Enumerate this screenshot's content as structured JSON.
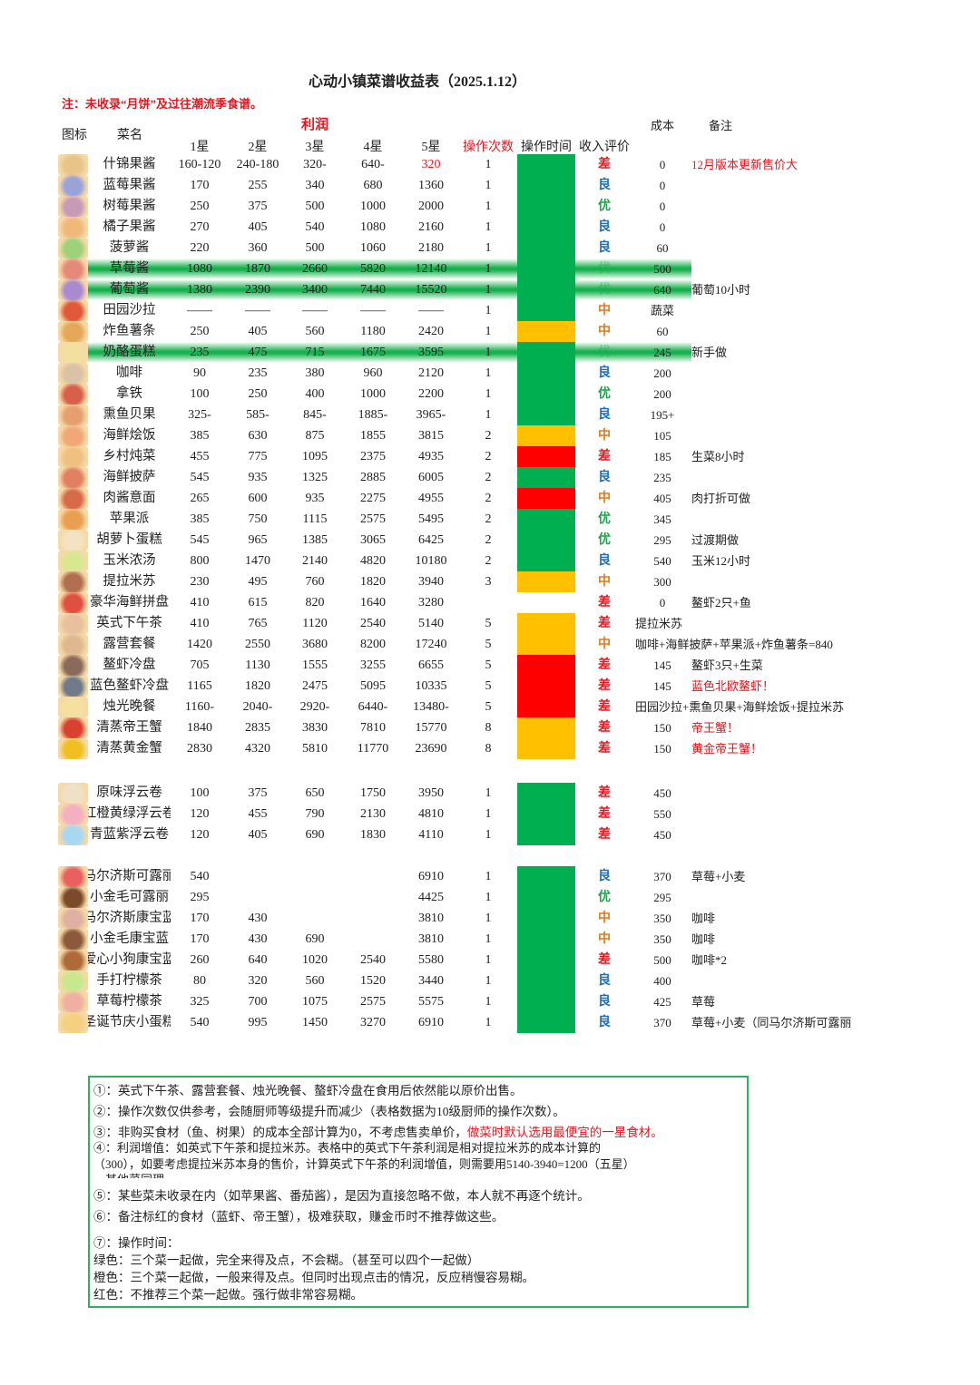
{
  "title": "心动小镇菜谱收益表（2025.1.12）",
  "top_note": "注：未收录“月饼”及过往潮流季食谱。",
  "headers": {
    "icon": "图标",
    "name": "菜名",
    "profit": "利润",
    "stars": [
      "1星",
      "2星",
      "3星",
      "4星",
      "5星"
    ],
    "count": "操作次数",
    "time": "操作时间",
    "rating": "收入评价",
    "cost": "成本",
    "remark": "备注"
  },
  "colors": {
    "green": "#00b050",
    "orange": "#ffc000",
    "red": "#ff0000"
  },
  "sections": [
    {
      "rows": [
        {
          "name": "什锦果酱",
          "p": [
            "160-120",
            "240-180",
            "320-",
            "640-",
            "320"
          ],
          "p5red": true,
          "n": "1",
          "t": "green",
          "r": "差",
          "c": "0",
          "note": "12月版本更新售价大",
          "noteRed": true,
          "icon": "#e9c48a"
        },
        {
          "name": "蓝莓果酱",
          "p": [
            "170",
            "255",
            "340",
            "680",
            "1360"
          ],
          "n": "1",
          "t": "green",
          "r": "良",
          "c": "0",
          "note": "",
          "icon": "#9aa3d8"
        },
        {
          "name": "树莓果酱",
          "p": [
            "250",
            "375",
            "500",
            "1000",
            "2000"
          ],
          "n": "1",
          "t": "green",
          "r": "优",
          "c": "0",
          "note": "",
          "icon": "#c79ab8"
        },
        {
          "name": "橘子果酱",
          "p": [
            "270",
            "405",
            "540",
            "1080",
            "2160"
          ],
          "n": "1",
          "t": "green",
          "r": "良",
          "c": "0",
          "note": "",
          "icon": "#f0b97a"
        },
        {
          "name": "菠萝酱",
          "p": [
            "220",
            "360",
            "500",
            "1060",
            "2180"
          ],
          "n": "1",
          "t": "green",
          "r": "良",
          "c": "60",
          "note": "",
          "icon": "#9fd07a"
        },
        {
          "name": "草莓酱",
          "p": [
            "1080",
            "1870",
            "2660",
            "5820",
            "12140"
          ],
          "n": "1",
          "t": "green",
          "r": "优",
          "c": "500",
          "note": "",
          "hl": true,
          "icon": "#e58a7a"
        },
        {
          "name": "葡萄酱",
          "p": [
            "1380",
            "2390",
            "3400",
            "7440",
            "15520"
          ],
          "n": "1",
          "t": "green",
          "r": "优",
          "c": "640",
          "note": "葡萄10小时",
          "hl": true,
          "icon": "#a98ad0"
        },
        {
          "name": "田园沙拉",
          "p": [
            "——",
            "——",
            "——",
            "——",
            "——"
          ],
          "n": "1",
          "t": "green",
          "r": "中",
          "c": "蔬菜",
          "note": "",
          "icon": "#e05a3a"
        },
        {
          "name": "炸鱼薯条",
          "p": [
            "250",
            "405",
            "560",
            "1180",
            "2420"
          ],
          "n": "1",
          "t": "orange",
          "r": "中",
          "c": "60",
          "note": "",
          "icon": "#e3a85a"
        },
        {
          "name": "奶酪蛋糕",
          "p": [
            "235",
            "475",
            "715",
            "1675",
            "3595"
          ],
          "n": "1",
          "t": "green",
          "r": "优",
          "c": "245",
          "note": "新手做",
          "hl": true,
          "icon": "#f2e0a0"
        },
        {
          "name": "咖啡",
          "p": [
            "90",
            "235",
            "380",
            "960",
            "2120"
          ],
          "n": "1",
          "t": "green",
          "r": "良",
          "c": "200",
          "note": "",
          "icon": "#d9c2a6"
        },
        {
          "name": "拿铁",
          "p": [
            "100",
            "250",
            "400",
            "1000",
            "2200"
          ],
          "n": "1",
          "t": "green",
          "r": "优",
          "c": "200",
          "note": "",
          "icon": "#d6604a"
        },
        {
          "name": "熏鱼贝果",
          "p": [
            "325-",
            "585-",
            "845-",
            "1885-",
            "3965-"
          ],
          "n": "1",
          "t": "green",
          "r": "良",
          "c": "195+",
          "note": "",
          "icon": "#e6a070"
        },
        {
          "name": "海鲜烩饭",
          "p": [
            "385",
            "630",
            "875",
            "1855",
            "3815"
          ],
          "n": "2",
          "t": "orange",
          "r": "中",
          "c": "105",
          "note": "",
          "icon": "#f0a878"
        },
        {
          "name": "乡村炖菜",
          "p": [
            "455",
            "775",
            "1095",
            "2375",
            "4935"
          ],
          "n": "2",
          "t": "red",
          "r": "差",
          "c": "185",
          "note": "生菜8小时",
          "icon": "#f0c080"
        },
        {
          "name": "海鲜披萨",
          "p": [
            "545",
            "935",
            "1325",
            "2885",
            "6005"
          ],
          "n": "2",
          "t": "green",
          "r": "良",
          "c": "235",
          "note": "",
          "icon": "#e08060"
        },
        {
          "name": "肉酱意面",
          "p": [
            "265",
            "600",
            "935",
            "2275",
            "4955"
          ],
          "n": "2",
          "t": "red",
          "r": "中",
          "c": "405",
          "note": "肉打折可做",
          "icon": "#d86a4a"
        },
        {
          "name": "苹果派",
          "p": [
            "385",
            "750",
            "1115",
            "2575",
            "5495"
          ],
          "n": "2",
          "t": "green",
          "r": "优",
          "c": "345",
          "note": "",
          "icon": "#e8a050"
        },
        {
          "name": "胡萝卜蛋糕",
          "p": [
            "545",
            "965",
            "1385",
            "3065",
            "6425"
          ],
          "n": "2",
          "t": "green",
          "r": "优",
          "c": "295",
          "note": "过渡期做",
          "icon": "#f3e3c0"
        },
        {
          "name": "玉米浓汤",
          "p": [
            "800",
            "1470",
            "2140",
            "4820",
            "10180"
          ],
          "n": "2",
          "t": "green",
          "r": "良",
          "c": "540",
          "note": "玉米12小时",
          "icon": "#d8e890"
        },
        {
          "name": "提拉米苏",
          "p": [
            "230",
            "495",
            "760",
            "1820",
            "3940"
          ],
          "n": "3",
          "t": "orange",
          "r": "中",
          "c": "300",
          "note": "",
          "icon": "#b07050"
        },
        {
          "name": "豪华海鲜拼盘",
          "p": [
            "410",
            "615",
            "820",
            "1640",
            "3280"
          ],
          "n": "",
          "t": "",
          "r": "差",
          "c": "0",
          "note": "鳌虾2只+鱼",
          "icon": "#e05040"
        },
        {
          "name": "英式下午茶",
          "p": [
            "410",
            "765",
            "1120",
            "2540",
            "5140"
          ],
          "n": "5",
          "t": "orange",
          "r": "差",
          "c": "",
          "note": "",
          "wide": "提拉米苏",
          "icon": "#e8c0a0"
        },
        {
          "name": "露营套餐",
          "p": [
            "1420",
            "2550",
            "3680",
            "8200",
            "17240"
          ],
          "n": "5",
          "t": "orange",
          "r": "中",
          "c": "",
          "note": "",
          "wide": "咖啡+海鲜披萨+苹果派+炸鱼薯条=840",
          "icon": "#e0b890"
        },
        {
          "name": "鳌虾冷盘",
          "p": [
            "705",
            "1130",
            "1555",
            "3255",
            "6655"
          ],
          "n": "5",
          "t": "red",
          "r": "差",
          "c": "145",
          "note": "鳌虾3只+生菜",
          "icon": "#8a6a5a"
        },
        {
          "name": "蓝色鳌虾冷盘",
          "p": [
            "1165",
            "1820",
            "2475",
            "5095",
            "10335"
          ],
          "n": "5",
          "t": "red",
          "r": "差",
          "c": "145",
          "note": "蓝色北欧鳌虾！",
          "noteRed": true,
          "icon": "#707a88"
        },
        {
          "name": "烛光晚餐",
          "p": [
            "1160-",
            "2040-",
            "2920-",
            "6440-",
            "13480-"
          ],
          "n": "5",
          "t": "red",
          "r": "差",
          "c": "",
          "note": "",
          "wide": "田园沙拉+熏鱼贝果+海鲜烩饭+提拉米苏",
          "icon": "#f4e0a0"
        },
        {
          "name": "清蒸帝王蟹",
          "p": [
            "1840",
            "2835",
            "3830",
            "7810",
            "15770"
          ],
          "n": "8",
          "t": "orange",
          "r": "差",
          "c": "150",
          "note": "帝王蟹！",
          "noteRed": true,
          "icon": "#d84030"
        },
        {
          "name": "清蒸黄金蟹",
          "p": [
            "2830",
            "4320",
            "5810",
            "11770",
            "23690"
          ],
          "n": "8",
          "t": "orange",
          "r": "差",
          "c": "150",
          "note": "黄金帝王蟹！",
          "noteRed": true,
          "icon": "#f0c020"
        }
      ]
    },
    {
      "rows": [
        {
          "name": "原味浮云卷",
          "p": [
            "100",
            "375",
            "650",
            "1750",
            "3950"
          ],
          "n": "1",
          "t": "green",
          "r": "差",
          "c": "450",
          "note": "",
          "icon": "#efe0c8"
        },
        {
          "name": "红橙黄绿浮云卷",
          "p": [
            "120",
            "455",
            "790",
            "2130",
            "4810"
          ],
          "n": "1",
          "t": "green",
          "r": "差",
          "c": "550",
          "note": "",
          "icon": "#f4b0c0"
        },
        {
          "name": "青蓝紫浮云卷",
          "p": [
            "120",
            "405",
            "690",
            "1830",
            "4110"
          ],
          "n": "1",
          "t": "green",
          "r": "差",
          "c": "450",
          "note": "",
          "icon": "#a8d8f0"
        }
      ]
    },
    {
      "rows": [
        {
          "name": "马尔济斯可露丽",
          "p": [
            "540",
            "",
            "",
            "",
            "6910"
          ],
          "n": "1",
          "t": "green",
          "r": "良",
          "c": "370",
          "note": "草莓+小麦",
          "icon": "#e86060"
        },
        {
          "name": "小金毛可露丽",
          "p": [
            "295",
            "",
            "",
            "",
            "4425"
          ],
          "n": "1",
          "t": "green",
          "r": "优",
          "c": "295",
          "note": "",
          "icon": "#7a4a2a"
        },
        {
          "name": "马尔济斯康宝蓝",
          "p": [
            "170",
            "430",
            "",
            "",
            "3810"
          ],
          "n": "1",
          "t": "green",
          "r": "中",
          "c": "350",
          "note": "咖啡",
          "icon": "#e0b0a0"
        },
        {
          "name": "小金毛康宝蓝",
          "p": [
            "170",
            "430",
            "690",
            "",
            "3810"
          ],
          "n": "1",
          "t": "green",
          "r": "中",
          "c": "350",
          "note": "咖啡",
          "icon": "#8a5a3a"
        },
        {
          "name": "爱心小狗康宝蓝",
          "p": [
            "260",
            "640",
            "1020",
            "2540",
            "5580"
          ],
          "n": "1",
          "t": "green",
          "r": "差",
          "c": "500",
          "note": "咖啡*2",
          "icon": "#b06a3a"
        },
        {
          "name": "手打柠檬茶",
          "p": [
            "80",
            "320",
            "560",
            "1520",
            "3440"
          ],
          "n": "1",
          "t": "green",
          "r": "良",
          "c": "400",
          "note": "",
          "icon": "#c8e890"
        },
        {
          "name": "草莓柠檬茶",
          "p": [
            "325",
            "700",
            "1075",
            "2575",
            "5575"
          ],
          "n": "1",
          "t": "green",
          "r": "良",
          "c": "425",
          "note": "草莓",
          "icon": "#f0b0a0"
        },
        {
          "name": "圣诞节庆小蛋糕",
          "p": [
            "540",
            "995",
            "1450",
            "3270",
            "6910"
          ],
          "n": "1",
          "t": "green",
          "r": "良",
          "c": "370",
          "note": "草莓+小麦（同马尔济斯可露丽",
          "icon": "#f4d080"
        }
      ]
    }
  ],
  "notes": {
    "n1": "①：英式下午茶、露营套餐、烛光晚餐、螯虾冷盘在食用后依然能以原价出售。",
    "n2": "②：操作次数仅供参考，会随厨师等级提升而减少（表格数据为10级厨师的操作次数）。",
    "n3a": "③：非购买食材（鱼、树果）的成本全部计算为0，不考虑售卖单价，",
    "n3b": "做菜时默认选用最便宜的一星食材。",
    "n4a": "④：利润增值：如英式下午茶和提拉米苏。表格中的英式下午茶利润是相对提拉米苏的成本计算的",
    "n4b": "（300），如要考虑提拉米苏本身的售价，计算英式下午茶的利润增值，则需要用5140-3940=1200（五星）",
    "n4c": "。其他菜同理。",
    "n5": "⑤：某些菜未收录在内（如苹果酱、番茄酱），是因为直接忽略不做，本人就不再逐个统计。",
    "n6": "⑥：备注标红的食材（蓝虾、帝王蟹），极难获取，赚金币时不推荐做这些。",
    "n7": "⑦：操作时间：",
    "green": "绿色：三个菜一起做，完全来得及点，不会糊。（甚至可以四个一起做）",
    "orange": "橙色：三个菜一起做，一般来得及点。但同时出现点击的情况，反应稍慢容易糊。",
    "red": "红色：不推荐三个菜一起做。强行做非常容易糊。"
  }
}
